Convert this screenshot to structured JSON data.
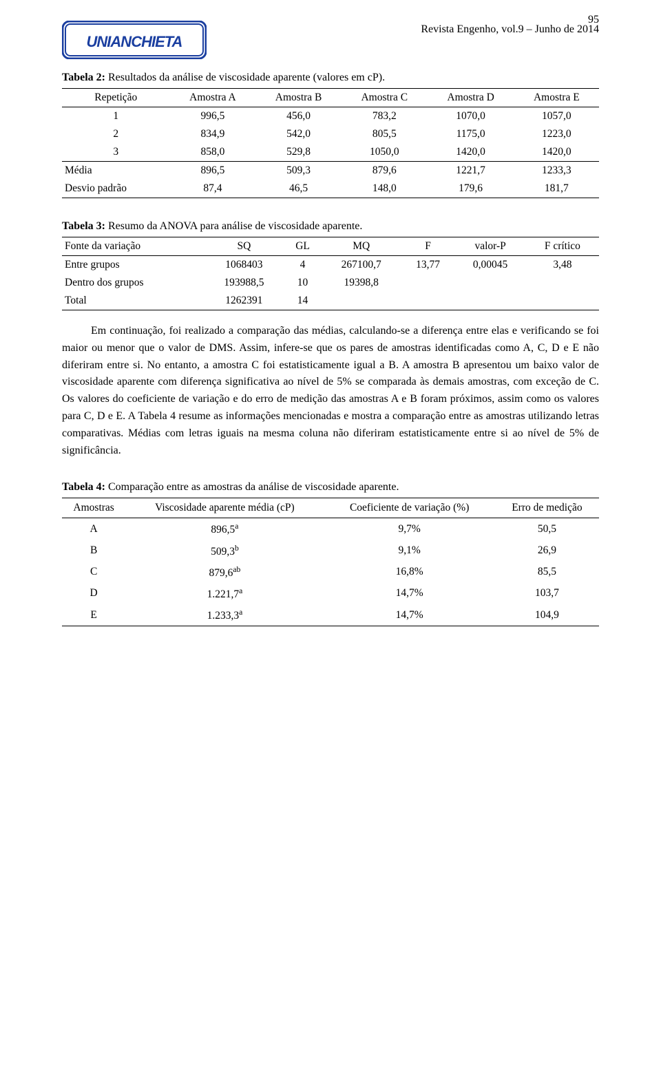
{
  "page_number": "95",
  "journal_line": "Revista Engenho, vol.9 – Junho de 2014",
  "logo": {
    "text": "UNIANCHIETA",
    "bg": "#ffffff",
    "stroke": "#1b3fa0",
    "fill": "#1b3fa0"
  },
  "table2": {
    "caption_bold": "Tabela 2:",
    "caption_rest": " Resultados da análise de viscosidade aparente (valores em cP).",
    "headers": [
      "Repetição",
      "Amostra A",
      "Amostra B",
      "Amostra C",
      "Amostra D",
      "Amostra E"
    ],
    "rows": [
      [
        "1",
        "996,5",
        "456,0",
        "783,2",
        "1070,0",
        "1057,0"
      ],
      [
        "2",
        "834,9",
        "542,0",
        "805,5",
        "1175,0",
        "1223,0"
      ],
      [
        "3",
        "858,0",
        "529,8",
        "1050,0",
        "1420,0",
        "1420,0"
      ]
    ],
    "summary": [
      [
        "Média",
        "896,5",
        "509,3",
        "879,6",
        "1221,7",
        "1233,3"
      ],
      [
        "Desvio padrão",
        "87,4",
        "46,5",
        "148,0",
        "179,6",
        "181,7"
      ]
    ]
  },
  "table3": {
    "caption_bold": "Tabela 3:",
    "caption_rest": " Resumo da ANOVA para análise de viscosidade aparente.",
    "headers": [
      "Fonte da variação",
      "SQ",
      "GL",
      "MQ",
      "F",
      "valor-P",
      "F crítico"
    ],
    "rows": [
      [
        "Entre grupos",
        "1068403",
        "4",
        "267100,7",
        "13,77",
        "0,00045",
        "3,48"
      ],
      [
        "Dentro dos grupos",
        "193988,5",
        "10",
        "19398,8",
        "",
        "",
        ""
      ],
      [
        "Total",
        "1262391",
        "14",
        "",
        "",
        "",
        ""
      ]
    ]
  },
  "paragraph": "Em continuação, foi realizado a comparação das médias, calculando-se a diferença entre elas e verificando se foi maior ou menor que o valor de DMS. Assim, infere-se que os pares de amostras identificadas como A, C, D e E não diferiram entre si. No entanto, a amostra C foi estatisticamente igual a B. A amostra B apresentou um baixo valor de viscosidade aparente com diferença significativa ao nível de 5% se comparada às demais amostras, com exceção de C. Os valores do coeficiente de variação e do erro de medição das amostras A e B foram próximos, assim como os valores para C, D e E. A Tabela 4 resume as informações mencionadas e mostra a comparação entre as amostras utilizando letras comparativas. Médias com letras iguais na mesma coluna não diferiram estatisticamente entre si ao nível de 5% de significância.",
  "table4": {
    "caption_bold": "Tabela 4:",
    "caption_rest": " Comparação entre as amostras da análise de viscosidade aparente.",
    "headers": [
      "Amostras",
      "Viscosidade aparente média (cP)",
      "Coeficiente de variação (%)",
      "Erro de medição"
    ],
    "rows": [
      {
        "a": "A",
        "v": "896,5",
        "sup": "a",
        "cv": "9,7%",
        "err": "50,5"
      },
      {
        "a": "B",
        "v": "509,3",
        "sup": "b",
        "cv": "9,1%",
        "err": "26,9"
      },
      {
        "a": "C",
        "v": "879,6",
        "sup": "ab",
        "cv": "16,8%",
        "err": "85,5"
      },
      {
        "a": "D",
        "v": "1.221,7",
        "sup": "a",
        "cv": "14,7%",
        "err": "103,7"
      },
      {
        "a": "E",
        "v": "1.233,3",
        "sup": "a",
        "cv": "14,7%",
        "err": "104,9"
      }
    ]
  }
}
